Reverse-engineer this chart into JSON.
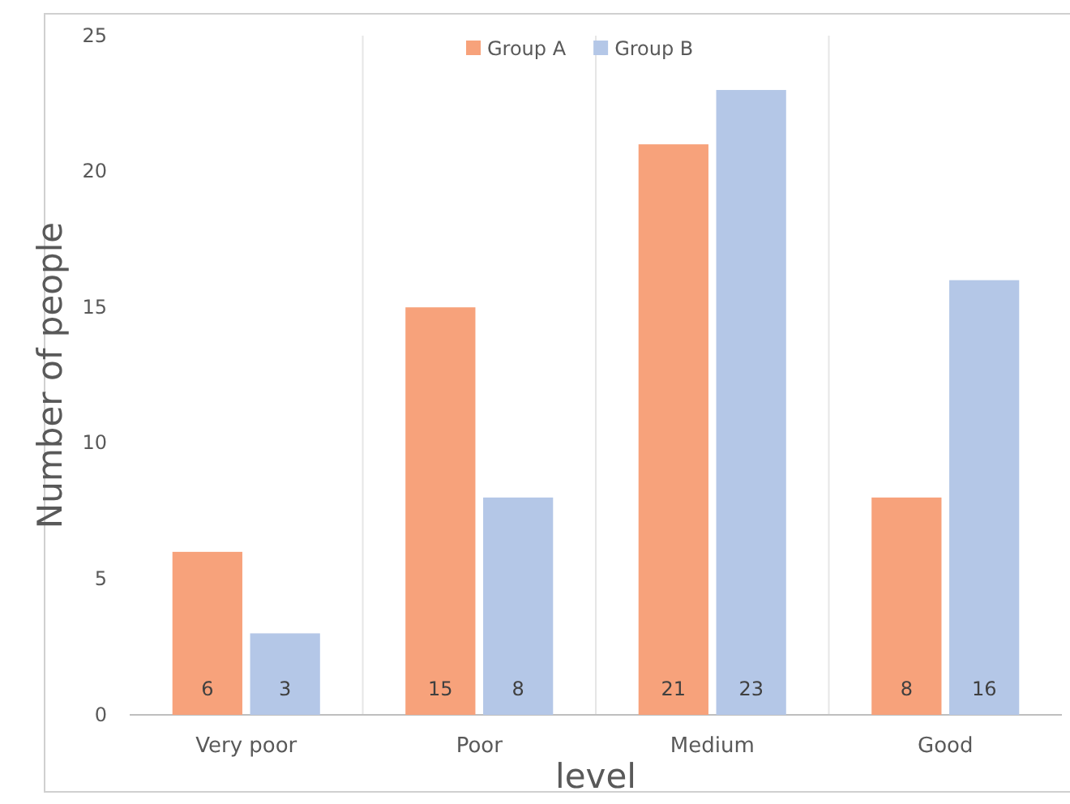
{
  "chart_data": {
    "type": "bar",
    "xlabel": "level",
    "ylabel": "Number of people",
    "categories": [
      "Very poor",
      "Poor",
      "Medium",
      "Good"
    ],
    "series": [
      {
        "name": "Group A",
        "color": "#f7a27b",
        "values": [
          6,
          15,
          21,
          8
        ]
      },
      {
        "name": "Group B",
        "color": "#b4c7e7",
        "values": [
          3,
          8,
          23,
          16
        ]
      }
    ],
    "ylim": [
      0,
      25
    ],
    "yticks": [
      0,
      5,
      10,
      15,
      20,
      25
    ],
    "grid": "x",
    "legend": "top",
    "data_labels": true
  }
}
